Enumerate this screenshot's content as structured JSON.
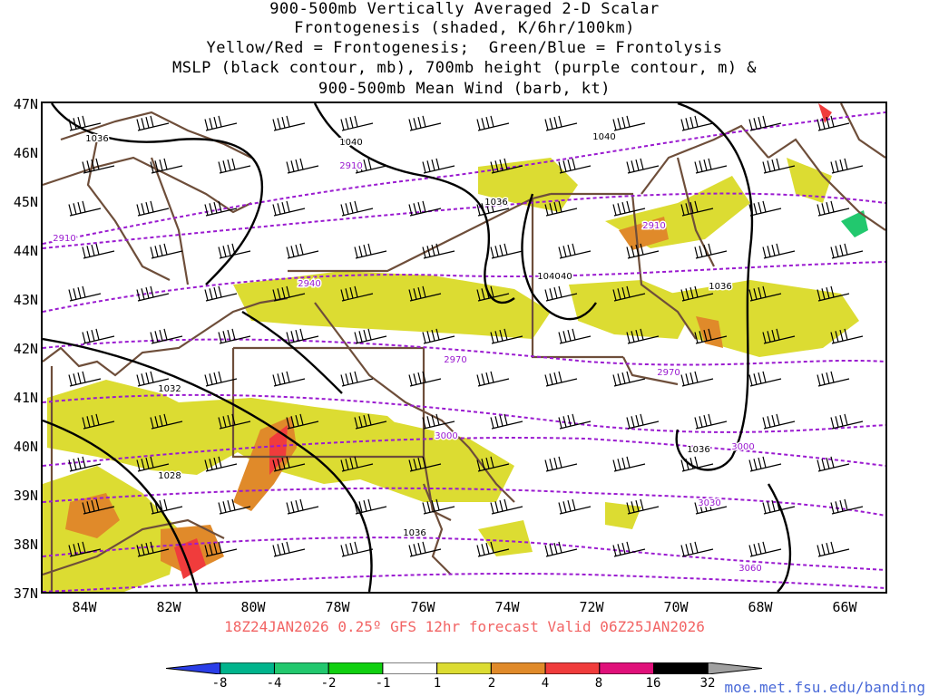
{
  "title_lines": [
    "900-500mb Vertically Averaged 2-D Scalar",
    "Frontogenesis (shaded, K/6hr/100km)",
    "Yellow/Red = Frontogenesis;  Green/Blue = Frontolysis",
    "MSLP (black contour, mb), 700mb height (purple contour, m) &",
    "900-500mb Mean Wind (barb, kt)"
  ],
  "lat_labels": [
    "47N",
    "46N",
    "45N",
    "44N",
    "43N",
    "42N",
    "41N",
    "40N",
    "39N",
    "38N",
    "37N"
  ],
  "lon_labels": [
    "84W",
    "82W",
    "80W",
    "78W",
    "76W",
    "74W",
    "72W",
    "70W",
    "68W",
    "66W"
  ],
  "valid_text": "18Z24JAN2026 0.25º GFS 12hr forecast Valid 06Z25JAN2026",
  "colorbar": {
    "labels": [
      "-8",
      "-4",
      "-2",
      "-1",
      "1",
      "2",
      "4",
      "8",
      "16",
      "32"
    ],
    "colors": [
      "#2a3ee8",
      "#00b48c",
      "#22c86e",
      "#10d010",
      "#ffffff",
      "#dcdc32",
      "#e08a2a",
      "#f03c3c",
      "#e0107a",
      "#000000",
      "#a0a0a0"
    ]
  },
  "url": "moe.met.fsu.edu/banding",
  "map": {
    "projection": "lat-lon",
    "lat_range": [
      37,
      47
    ],
    "lon_range": [
      -85,
      -65
    ],
    "mslp_contour_labels": [
      "1036",
      "1040",
      "1040",
      "1036",
      "1040",
      "1040",
      "1036",
      "1032",
      "1028",
      "1036",
      "1036"
    ],
    "height_contour_labels": [
      "2910",
      "2910",
      "2910",
      "2940",
      "2970",
      "2970",
      "3000",
      "3000",
      "3030",
      "3060"
    ],
    "colors": {
      "mslp": "#000000",
      "height": "#9a1ad0",
      "borders": "#6e4e3a",
      "fronto_weak": "#dcdc32",
      "fronto_moderate": "#e08a2a",
      "fronto_strong": "#f03c3c",
      "frontolysis": "#22c86e"
    }
  }
}
